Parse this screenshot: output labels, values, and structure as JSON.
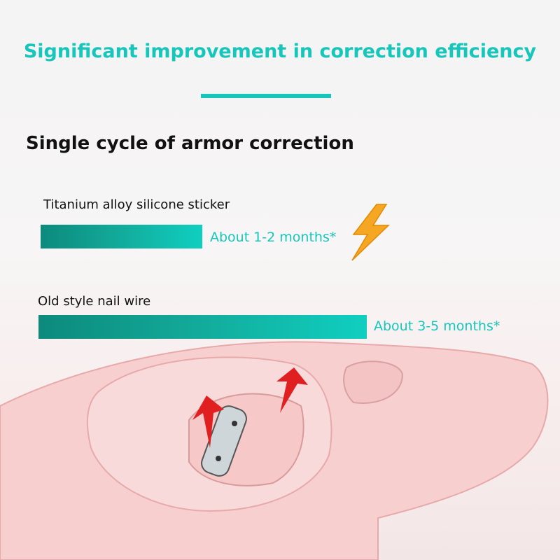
{
  "title": "Significant improvement in correction efficiency",
  "subtitle": "Single cycle of armor correction",
  "comparison": [
    {
      "label": "Titanium alloy silicone sticker",
      "value": "About 1-2 months*"
    },
    {
      "label": "Old style nail wire",
      "value": "About 3-5 months*"
    }
  ],
  "colors": {
    "accent": "#16c6bb",
    "bar_dark": "#0c8a7c",
    "lightning": "#f5a623"
  },
  "icons": [
    "lightning-icon",
    "arrow-up-icon"
  ]
}
